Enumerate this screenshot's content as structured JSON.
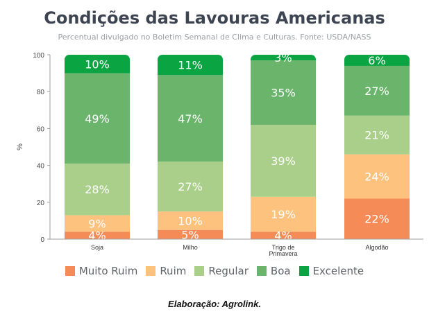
{
  "chart_data": {
    "type": "bar",
    "stacked": true,
    "title": "Condições das Lavouras Americanas",
    "subtitle": "Percentual divulgado no Boletim Semanal de Clima e Culturas. Fonte: USDA/NASS",
    "ylabel": "%",
    "xlabel": "",
    "ylim": [
      0,
      100
    ],
    "yticks": [
      0,
      20,
      40,
      60,
      80,
      100
    ],
    "categories": [
      [
        "Soja"
      ],
      [
        "Milho"
      ],
      [
        "Trigo de",
        "Primavera"
      ],
      [
        "Algodão"
      ]
    ],
    "series": [
      {
        "name": "Muito Ruim",
        "color": "#f58b57",
        "values": [
          4,
          5,
          4,
          22
        ]
      },
      {
        "name": "Ruim",
        "color": "#fdc27e",
        "values": [
          9,
          10,
          19,
          24
        ]
      },
      {
        "name": "Regular",
        "color": "#a9cf8a",
        "values": [
          28,
          27,
          39,
          21
        ]
      },
      {
        "name": "Boa",
        "color": "#6ab46c",
        "values": [
          49,
          47,
          35,
          27
        ]
      },
      {
        "name": "Excelente",
        "color": "#0ba442",
        "values": [
          10,
          11,
          3,
          6
        ]
      }
    ],
    "legend_position": "bottom"
  },
  "footer": {
    "credit": "Elaboração: Agrolink."
  }
}
